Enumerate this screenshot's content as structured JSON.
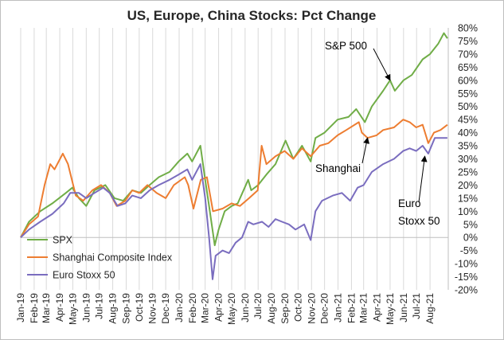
{
  "chart_data": {
    "type": "line",
    "title": "US, Europe, China Stocks: Pct Change",
    "xlabel": "",
    "ylabel": "",
    "x_range": [
      "2019-01",
      "2021-09"
    ],
    "ylim": [
      -0.2,
      0.8
    ],
    "y_tick_labels": [
      "80%",
      "75%",
      "70%",
      "65%",
      "60%",
      "55%",
      "50%",
      "45%",
      "40%",
      "35%",
      "30%",
      "25%",
      "20%",
      "15%",
      "10%",
      "5%",
      "0%",
      "-5%",
      "-10%",
      "-15%",
      "-20%"
    ],
    "x_tick_labels": [
      "Jan-19",
      "Feb-19",
      "Mar-19",
      "Apr-19",
      "May-19",
      "Jun-19",
      "Jul-19",
      "Aug-19",
      "Sep-19",
      "Oct-19",
      "Nov-19",
      "Dec-19",
      "Jan-20",
      "Feb-20",
      "Mar-20",
      "Apr-20",
      "May-20",
      "Jun-20",
      "Jul-20",
      "Aug-20",
      "Sep-20",
      "Oct-20",
      "Nov-20",
      "Dec-20",
      "Jan-21",
      "Feb-21",
      "Mar-21",
      "Apr-21",
      "May-21",
      "Jun-21",
      "Jul-21",
      "Aug-21"
    ],
    "grid": "vertical",
    "legend_position": "bottom-left",
    "series": [
      {
        "name": "SPX",
        "color": "#70ad47",
        "points": [
          [
            "2019-01-01",
            0.0
          ],
          [
            "2019-01-20",
            0.06
          ],
          [
            "2019-02-15",
            0.1
          ],
          [
            "2019-03-15",
            0.13
          ],
          [
            "2019-04-15",
            0.17
          ],
          [
            "2019-04-30",
            0.19
          ],
          [
            "2019-05-15",
            0.15
          ],
          [
            "2019-06-01",
            0.12
          ],
          [
            "2019-06-20",
            0.18
          ],
          [
            "2019-07-15",
            0.2
          ],
          [
            "2019-08-05",
            0.15
          ],
          [
            "2019-08-25",
            0.14
          ],
          [
            "2019-09-15",
            0.18
          ],
          [
            "2019-10-05",
            0.17
          ],
          [
            "2019-10-25",
            0.2
          ],
          [
            "2019-11-15",
            0.23
          ],
          [
            "2019-12-10",
            0.25
          ],
          [
            "2019-12-31",
            0.29
          ],
          [
            "2020-01-20",
            0.32
          ],
          [
            "2020-01-31",
            0.29
          ],
          [
            "2020-02-19",
            0.35
          ],
          [
            "2020-03-01",
            0.22
          ],
          [
            "2020-03-10",
            0.12
          ],
          [
            "2020-03-23",
            -0.03
          ],
          [
            "2020-04-01",
            0.03
          ],
          [
            "2020-04-15",
            0.1
          ],
          [
            "2020-05-01",
            0.12
          ],
          [
            "2020-05-15",
            0.13
          ],
          [
            "2020-06-08",
            0.22
          ],
          [
            "2020-06-15",
            0.18
          ],
          [
            "2020-07-01",
            0.2
          ],
          [
            "2020-07-20",
            0.24
          ],
          [
            "2020-08-10",
            0.28
          ],
          [
            "2020-09-02",
            0.37
          ],
          [
            "2020-09-20",
            0.3
          ],
          [
            "2020-10-10",
            0.35
          ],
          [
            "2020-10-30",
            0.29
          ],
          [
            "2020-11-10",
            0.38
          ],
          [
            "2020-12-01",
            0.4
          ],
          [
            "2020-12-31",
            0.45
          ],
          [
            "2021-01-25",
            0.46
          ],
          [
            "2021-02-12",
            0.49
          ],
          [
            "2021-03-04",
            0.44
          ],
          [
            "2021-03-20",
            0.5
          ],
          [
            "2021-04-15",
            0.56
          ],
          [
            "2021-05-01",
            0.6
          ],
          [
            "2021-05-12",
            0.56
          ],
          [
            "2021-06-01",
            0.6
          ],
          [
            "2021-06-20",
            0.62
          ],
          [
            "2021-07-15",
            0.68
          ],
          [
            "2021-08-01",
            0.7
          ],
          [
            "2021-08-20",
            0.74
          ],
          [
            "2021-09-02",
            0.78
          ],
          [
            "2021-09-10",
            0.76
          ]
        ]
      },
      {
        "name": "Shanghai Composite Index",
        "color": "#ed7d31",
        "points": [
          [
            "2019-01-01",
            0.0
          ],
          [
            "2019-01-20",
            0.05
          ],
          [
            "2019-02-10",
            0.08
          ],
          [
            "2019-02-25",
            0.2
          ],
          [
            "2019-03-10",
            0.28
          ],
          [
            "2019-03-20",
            0.26
          ],
          [
            "2019-04-08",
            0.32
          ],
          [
            "2019-04-20",
            0.28
          ],
          [
            "2019-05-08",
            0.16
          ],
          [
            "2019-05-25",
            0.14
          ],
          [
            "2019-06-15",
            0.18
          ],
          [
            "2019-07-05",
            0.2
          ],
          [
            "2019-07-25",
            0.17
          ],
          [
            "2019-08-10",
            0.12
          ],
          [
            "2019-08-30",
            0.14
          ],
          [
            "2019-09-15",
            0.18
          ],
          [
            "2019-10-01",
            0.17
          ],
          [
            "2019-10-20",
            0.2
          ],
          [
            "2019-11-10",
            0.17
          ],
          [
            "2019-12-01",
            0.15
          ],
          [
            "2019-12-20",
            0.2
          ],
          [
            "2020-01-14",
            0.23
          ],
          [
            "2020-01-22",
            0.2
          ],
          [
            "2020-02-03",
            0.11
          ],
          [
            "2020-02-20",
            0.22
          ],
          [
            "2020-03-05",
            0.23
          ],
          [
            "2020-03-19",
            0.1
          ],
          [
            "2020-04-10",
            0.11
          ],
          [
            "2020-05-01",
            0.13
          ],
          [
            "2020-05-20",
            0.12
          ],
          [
            "2020-06-10",
            0.15
          ],
          [
            "2020-06-30",
            0.18
          ],
          [
            "2020-07-09",
            0.35
          ],
          [
            "2020-07-20",
            0.28
          ],
          [
            "2020-08-10",
            0.31
          ],
          [
            "2020-08-31",
            0.33
          ],
          [
            "2020-09-20",
            0.3
          ],
          [
            "2020-10-10",
            0.34
          ],
          [
            "2020-10-30",
            0.31
          ],
          [
            "2020-11-20",
            0.35
          ],
          [
            "2020-12-10",
            0.36
          ],
          [
            "2020-12-31",
            0.39
          ],
          [
            "2021-01-20",
            0.41
          ],
          [
            "2021-02-18",
            0.44
          ],
          [
            "2021-02-25",
            0.4
          ],
          [
            "2021-03-10",
            0.38
          ],
          [
            "2021-03-31",
            0.39
          ],
          [
            "2021-04-15",
            0.41
          ],
          [
            "2021-05-10",
            0.42
          ],
          [
            "2021-05-31",
            0.45
          ],
          [
            "2021-06-15",
            0.44
          ],
          [
            "2021-06-30",
            0.42
          ],
          [
            "2021-07-15",
            0.43
          ],
          [
            "2021-07-28",
            0.36
          ],
          [
            "2021-08-10",
            0.4
          ],
          [
            "2021-08-25",
            0.41
          ],
          [
            "2021-09-10",
            0.43
          ]
        ]
      },
      {
        "name": "Euro Stoxx 50",
        "color": "#7a6dbf",
        "points": [
          [
            "2019-01-01",
            0.0
          ],
          [
            "2019-01-20",
            0.03
          ],
          [
            "2019-02-15",
            0.06
          ],
          [
            "2019-03-15",
            0.09
          ],
          [
            "2019-04-10",
            0.13
          ],
          [
            "2019-04-25",
            0.17
          ],
          [
            "2019-05-15",
            0.17
          ],
          [
            "2019-06-01",
            0.15
          ],
          [
            "2019-06-20",
            0.17
          ],
          [
            "2019-07-10",
            0.19
          ],
          [
            "2019-07-25",
            0.17
          ],
          [
            "2019-08-12",
            0.12
          ],
          [
            "2019-08-30",
            0.13
          ],
          [
            "2019-09-15",
            0.16
          ],
          [
            "2019-10-05",
            0.15
          ],
          [
            "2019-10-25",
            0.18
          ],
          [
            "2019-11-15",
            0.2
          ],
          [
            "2019-12-10",
            0.22
          ],
          [
            "2019-12-31",
            0.24
          ],
          [
            "2020-01-20",
            0.26
          ],
          [
            "2020-01-31",
            0.22
          ],
          [
            "2020-02-19",
            0.28
          ],
          [
            "2020-03-01",
            0.15
          ],
          [
            "2020-03-10",
            0.0
          ],
          [
            "2020-03-18",
            -0.16
          ],
          [
            "2020-03-25",
            -0.07
          ],
          [
            "2020-04-10",
            -0.05
          ],
          [
            "2020-04-25",
            -0.06
          ],
          [
            "2020-05-10",
            -0.02
          ],
          [
            "2020-05-25",
            0.0
          ],
          [
            "2020-06-08",
            0.06
          ],
          [
            "2020-06-20",
            0.05
          ],
          [
            "2020-07-10",
            0.06
          ],
          [
            "2020-07-25",
            0.04
          ],
          [
            "2020-08-10",
            0.07
          ],
          [
            "2020-08-25",
            0.06
          ],
          [
            "2020-09-10",
            0.05
          ],
          [
            "2020-09-25",
            0.03
          ],
          [
            "2020-10-15",
            0.05
          ],
          [
            "2020-10-30",
            -0.01
          ],
          [
            "2020-11-10",
            0.1
          ],
          [
            "2020-11-25",
            0.14
          ],
          [
            "2020-12-20",
            0.16
          ],
          [
            "2021-01-10",
            0.17
          ],
          [
            "2021-01-29",
            0.14
          ],
          [
            "2021-02-15",
            0.19
          ],
          [
            "2021-03-01",
            0.2
          ],
          [
            "2021-03-20",
            0.25
          ],
          [
            "2021-04-15",
            0.28
          ],
          [
            "2021-05-10",
            0.3
          ],
          [
            "2021-05-31",
            0.33
          ],
          [
            "2021-06-15",
            0.34
          ],
          [
            "2021-06-30",
            0.33
          ],
          [
            "2021-07-15",
            0.35
          ],
          [
            "2021-07-28",
            0.32
          ],
          [
            "2021-08-12",
            0.38
          ],
          [
            "2021-08-25",
            0.38
          ],
          [
            "2021-09-10",
            0.38
          ]
        ]
      }
    ],
    "annotations": [
      {
        "text": "S&P 500",
        "points_to": [
          "2021-05-01",
          0.6
        ]
      },
      {
        "text": "Shanghai",
        "points_to": [
          "2021-03-10",
          0.38
        ]
      },
      {
        "text": "Euro",
        "line2": "Stoxx 50",
        "points_to": [
          "2021-07-20",
          0.31
        ]
      }
    ]
  }
}
